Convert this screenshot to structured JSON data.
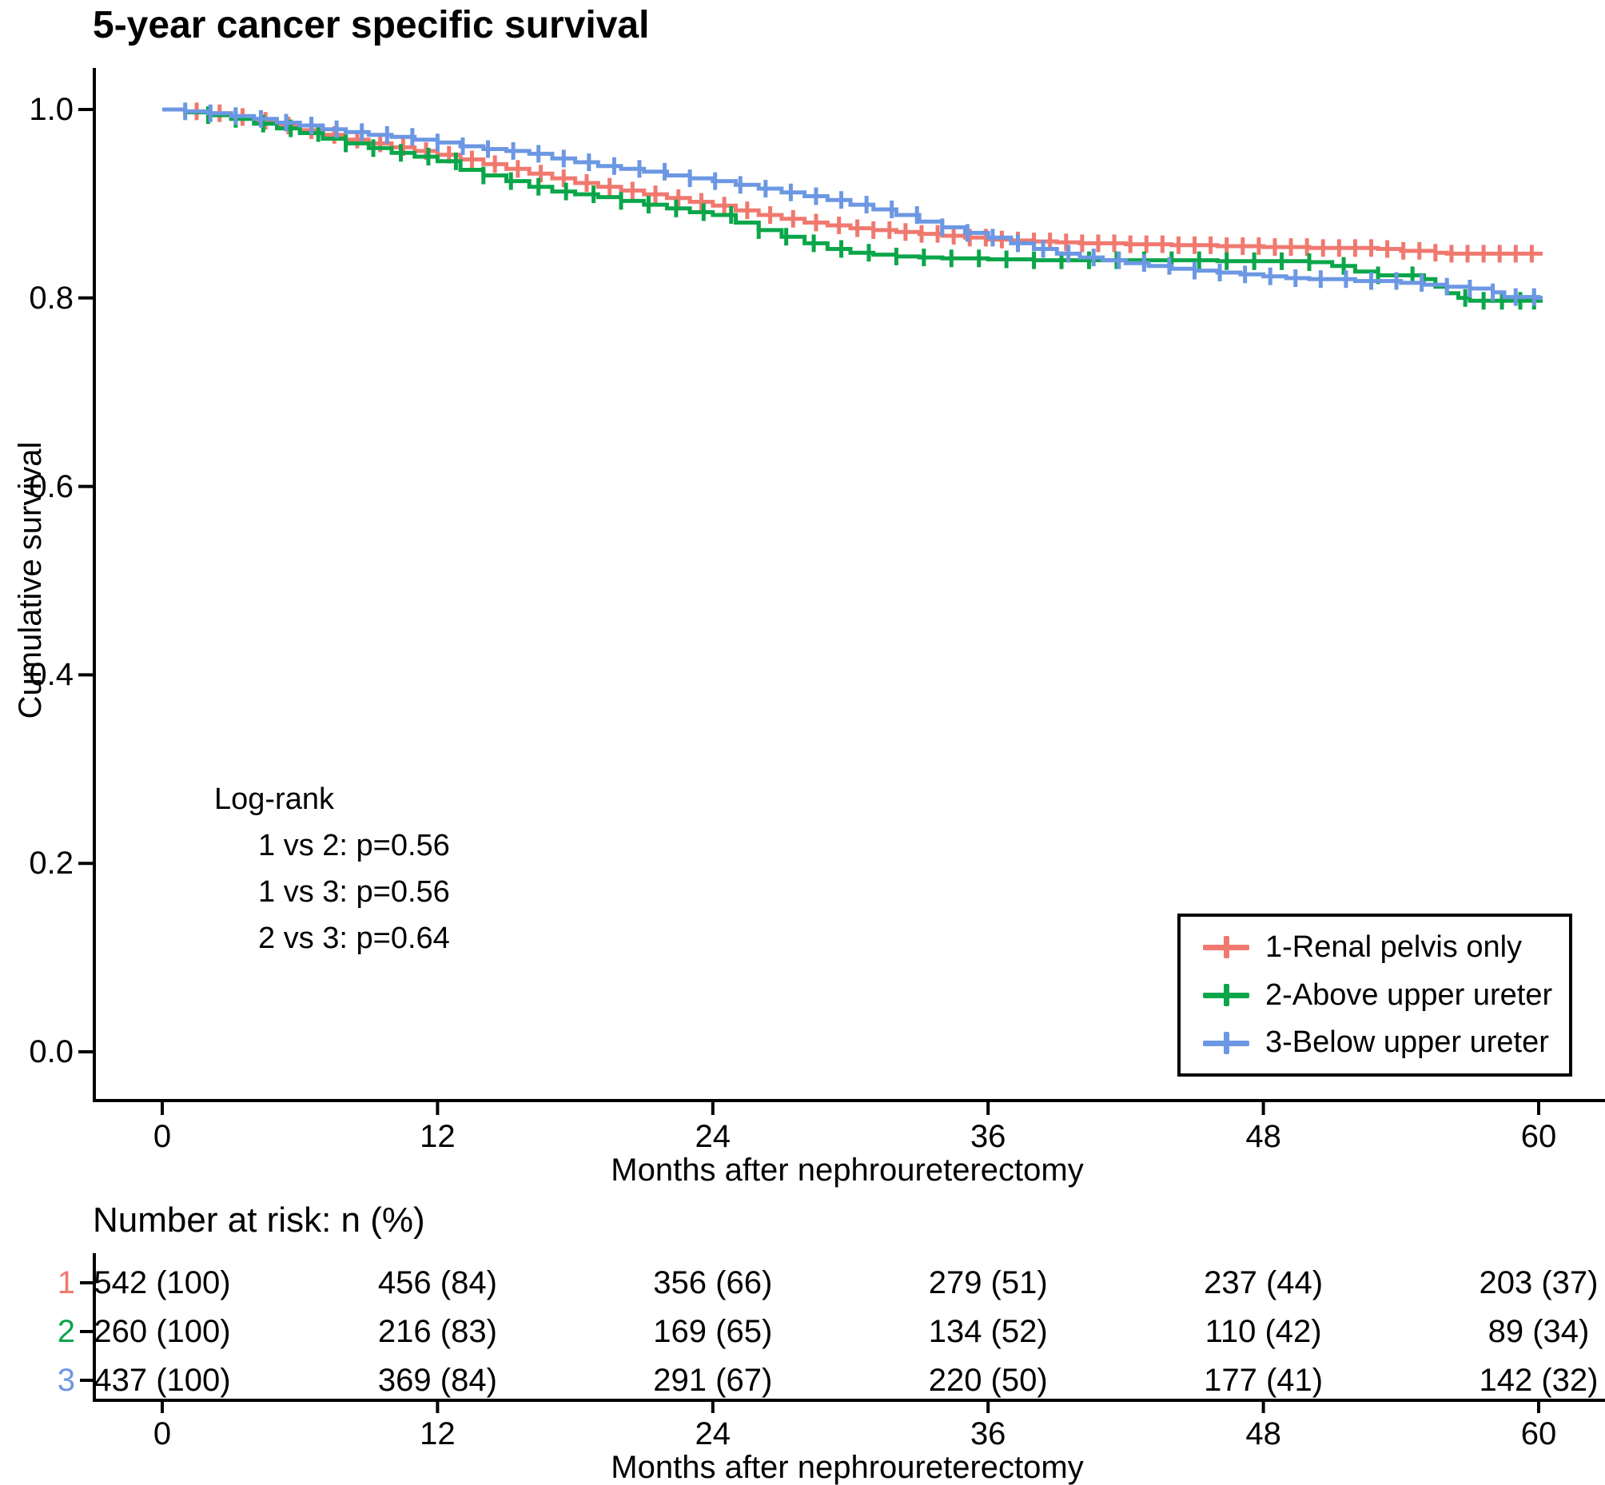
{
  "title": "5-year cancer specific survival",
  "axes": {
    "y_label": "Cumulative survival",
    "x_label": "Months after nephroureterectomy",
    "y_ticks": [
      "1.0",
      "0.8",
      "0.6",
      "0.4",
      "0.2",
      "0.0"
    ],
    "x_ticks": [
      "0",
      "12",
      "24",
      "36",
      "48",
      "60"
    ]
  },
  "annotations": {
    "logrank_title": "Log-rank",
    "comparisons": [
      "1 vs 2: p=0.56",
      "1 vs 3: p=0.56",
      "2 vs 3: p=0.64"
    ]
  },
  "risk_table": {
    "heading": "Number at risk: n (%)",
    "x_label": "Months after nephroureterectomy",
    "x_ticks": [
      "0",
      "12",
      "24",
      "36",
      "48",
      "60"
    ],
    "rows": [
      {
        "label": "1",
        "values": [
          "542 (100)",
          "456 (84)",
          "356 (66)",
          "279 (51)",
          "237 (44)",
          "203 (37)"
        ]
      },
      {
        "label": "2",
        "values": [
          "260 (100)",
          "216 (83)",
          "169 (65)",
          "134 (52)",
          "110 (42)",
          "89 (34)"
        ]
      },
      {
        "label": "3",
        "values": [
          "437 (100)",
          "369 (84)",
          "291 (67)",
          "220 (50)",
          "177 (41)",
          "142 (32)"
        ]
      }
    ]
  },
  "chart_data": {
    "type": "line",
    "subtype": "kaplan-meier-step",
    "title": "5-year cancer specific survival",
    "xlabel": "Months after nephroureterectomy",
    "ylabel": "Cumulative survival",
    "xlim": [
      0,
      60
    ],
    "ylim": [
      0.0,
      1.0
    ],
    "x_tick_values": [
      0,
      12,
      24,
      36,
      48,
      60
    ],
    "y_tick_values": [
      1.0,
      0.8,
      0.6,
      0.4,
      0.2,
      0.0
    ],
    "grid": false,
    "legend_position": "bottom-right",
    "series": [
      {
        "name": "1-Renal pelvis only",
        "color": "#F0796F",
        "points": [
          [
            0,
            1.0
          ],
          [
            1,
            0.998
          ],
          [
            2,
            0.996
          ],
          [
            3,
            0.992
          ],
          [
            4,
            0.988
          ],
          [
            5,
            0.983
          ],
          [
            6,
            0.978
          ],
          [
            7,
            0.973
          ],
          [
            8,
            0.968
          ],
          [
            9,
            0.964
          ],
          [
            10,
            0.96
          ],
          [
            11,
            0.956
          ],
          [
            12,
            0.952
          ],
          [
            13,
            0.947
          ],
          [
            14,
            0.942
          ],
          [
            15,
            0.937
          ],
          [
            16,
            0.932
          ],
          [
            17,
            0.927
          ],
          [
            18,
            0.922
          ],
          [
            19,
            0.918
          ],
          [
            20,
            0.914
          ],
          [
            21,
            0.91
          ],
          [
            22,
            0.906
          ],
          [
            23,
            0.902
          ],
          [
            24,
            0.898
          ],
          [
            25,
            0.893
          ],
          [
            26,
            0.888
          ],
          [
            27,
            0.884
          ],
          [
            28,
            0.88
          ],
          [
            29,
            0.877
          ],
          [
            30,
            0.874
          ],
          [
            31,
            0.872
          ],
          [
            32,
            0.87
          ],
          [
            33,
            0.868
          ],
          [
            34,
            0.866
          ],
          [
            35,
            0.864
          ],
          [
            36,
            0.862
          ],
          [
            37,
            0.861
          ],
          [
            38,
            0.86
          ],
          [
            39,
            0.859
          ],
          [
            40,
            0.858
          ],
          [
            42,
            0.857
          ],
          [
            44,
            0.856
          ],
          [
            46,
            0.855
          ],
          [
            48,
            0.854
          ],
          [
            50,
            0.853
          ],
          [
            53,
            0.852
          ],
          [
            54,
            0.85
          ],
          [
            55.5,
            0.848
          ],
          [
            56,
            0.847
          ],
          [
            60,
            0.847
          ]
        ],
        "censors": [
          1.5,
          2.5,
          3.5,
          4.5,
          5.5,
          6.5,
          7.5,
          8.5,
          9.5,
          10.5,
          11.5,
          12.5,
          13.5,
          14.5,
          15.5,
          16.5,
          17.5,
          18.5,
          19.5,
          20.5,
          21.5,
          22.5,
          23.5,
          24.5,
          25.5,
          26.5,
          27.5,
          28.5,
          29.5,
          30.3,
          31,
          31.7,
          32.4,
          33.1,
          33.8,
          34.5,
          35.2,
          35.9,
          36.6,
          37.3,
          38,
          38.7,
          39.4,
          40.1,
          40.8,
          41.5,
          42.2,
          42.9,
          43.6,
          44.3,
          45,
          45.7,
          46.4,
          47.1,
          47.8,
          48.5,
          49.2,
          49.9,
          50.6,
          51.3,
          52,
          52.7,
          53.4,
          54.1,
          54.8,
          55.5,
          56.2,
          56.9,
          57.6,
          58.3,
          59,
          59.7
        ]
      },
      {
        "name": "2-Above upper ureter",
        "color": "#0BA64A",
        "points": [
          [
            0,
            1.0
          ],
          [
            1,
            0.997
          ],
          [
            2,
            0.994
          ],
          [
            3,
            0.99
          ],
          [
            4,
            0.985
          ],
          [
            5,
            0.98
          ],
          [
            6,
            0.975
          ],
          [
            7,
            0.969
          ],
          [
            8,
            0.964
          ],
          [
            9,
            0.959
          ],
          [
            10,
            0.954
          ],
          [
            11,
            0.95
          ],
          [
            12,
            0.945
          ],
          [
            13,
            0.936
          ],
          [
            14,
            0.93
          ],
          [
            15,
            0.924
          ],
          [
            16,
            0.918
          ],
          [
            17,
            0.913
          ],
          [
            18,
            0.91
          ],
          [
            19,
            0.907
          ],
          [
            20,
            0.903
          ],
          [
            21,
            0.899
          ],
          [
            22,
            0.895
          ],
          [
            23,
            0.891
          ],
          [
            24,
            0.888
          ],
          [
            25,
            0.88
          ],
          [
            26,
            0.872
          ],
          [
            27,
            0.865
          ],
          [
            28,
            0.858
          ],
          [
            29,
            0.852
          ],
          [
            30,
            0.848
          ],
          [
            31,
            0.846
          ],
          [
            32,
            0.844
          ],
          [
            33,
            0.843
          ],
          [
            34,
            0.842
          ],
          [
            36,
            0.841
          ],
          [
            38,
            0.84
          ],
          [
            42,
            0.84
          ],
          [
            46,
            0.839
          ],
          [
            50,
            0.838
          ],
          [
            51,
            0.834
          ],
          [
            52,
            0.828
          ],
          [
            53,
            0.824
          ],
          [
            55,
            0.82
          ],
          [
            55.5,
            0.812
          ],
          [
            56,
            0.805
          ],
          [
            56.5,
            0.8
          ],
          [
            57,
            0.797
          ],
          [
            60,
            0.797
          ]
        ],
        "censors": [
          2,
          3.2,
          4.4,
          5.6,
          6.8,
          8,
          9.2,
          10.4,
          11.6,
          12.8,
          14,
          15.2,
          16.4,
          17.6,
          18.8,
          20,
          21.2,
          22.4,
          23.6,
          24.8,
          26,
          27.2,
          28.4,
          29.6,
          30.8,
          32,
          33.2,
          34.4,
          35.6,
          36.8,
          38,
          39.2,
          40.4,
          41.6,
          42.8,
          44,
          45.2,
          46.4,
          47.6,
          48.8,
          50,
          51.5,
          53,
          54.5,
          56.8,
          57.6,
          58.4,
          59.2,
          59.8
        ]
      },
      {
        "name": "3-Below upper ureter",
        "color": "#6C97E3",
        "points": [
          [
            0,
            1.0
          ],
          [
            1,
            0.998
          ],
          [
            2,
            0.996
          ],
          [
            3,
            0.993
          ],
          [
            4,
            0.99
          ],
          [
            5,
            0.986
          ],
          [
            6,
            0.983
          ],
          [
            7,
            0.979
          ],
          [
            8,
            0.976
          ],
          [
            9,
            0.973
          ],
          [
            10,
            0.971
          ],
          [
            11,
            0.968
          ],
          [
            12,
            0.965
          ],
          [
            13,
            0.961
          ],
          [
            14,
            0.958
          ],
          [
            15,
            0.956
          ],
          [
            16,
            0.953
          ],
          [
            17,
            0.948
          ],
          [
            18,
            0.944
          ],
          [
            19,
            0.94
          ],
          [
            20,
            0.937
          ],
          [
            21,
            0.934
          ],
          [
            22,
            0.93
          ],
          [
            23,
            0.927
          ],
          [
            24,
            0.924
          ],
          [
            25,
            0.92
          ],
          [
            26,
            0.916
          ],
          [
            27,
            0.912
          ],
          [
            28,
            0.908
          ],
          [
            29,
            0.904
          ],
          [
            30,
            0.899
          ],
          [
            31,
            0.894
          ],
          [
            32,
            0.888
          ],
          [
            33,
            0.881
          ],
          [
            34,
            0.875
          ],
          [
            35,
            0.869
          ],
          [
            36,
            0.864
          ],
          [
            37,
            0.858
          ],
          [
            38,
            0.852
          ],
          [
            39,
            0.847
          ],
          [
            40,
            0.843
          ],
          [
            41,
            0.84
          ],
          [
            42,
            0.837
          ],
          [
            43,
            0.834
          ],
          [
            44,
            0.831
          ],
          [
            45,
            0.829
          ],
          [
            46,
            0.827
          ],
          [
            47,
            0.825
          ],
          [
            48,
            0.823
          ],
          [
            49,
            0.821
          ],
          [
            50,
            0.82
          ],
          [
            52,
            0.818
          ],
          [
            54,
            0.816
          ],
          [
            55,
            0.814
          ],
          [
            56,
            0.812
          ],
          [
            57,
            0.81
          ],
          [
            58,
            0.806
          ],
          [
            58.5,
            0.801
          ],
          [
            60,
            0.8
          ]
        ],
        "censors": [
          1,
          2.1,
          3.2,
          4.3,
          5.4,
          6.5,
          7.6,
          8.7,
          9.8,
          10.9,
          12,
          13.1,
          14.2,
          15.3,
          16.4,
          17.5,
          18.6,
          19.7,
          20.8,
          21.9,
          23,
          24.1,
          25.2,
          26.3,
          27.4,
          28.5,
          29.6,
          30.7,
          31.8,
          32.9,
          34,
          35.1,
          36.2,
          37.3,
          38.4,
          39.5,
          40.6,
          41.7,
          42.8,
          43.9,
          45,
          46.1,
          47.2,
          48.3,
          49.4,
          50.5,
          51.6,
          52.7,
          53.8,
          54.9,
          56,
          57,
          58,
          59,
          59.8
        ]
      }
    ]
  }
}
